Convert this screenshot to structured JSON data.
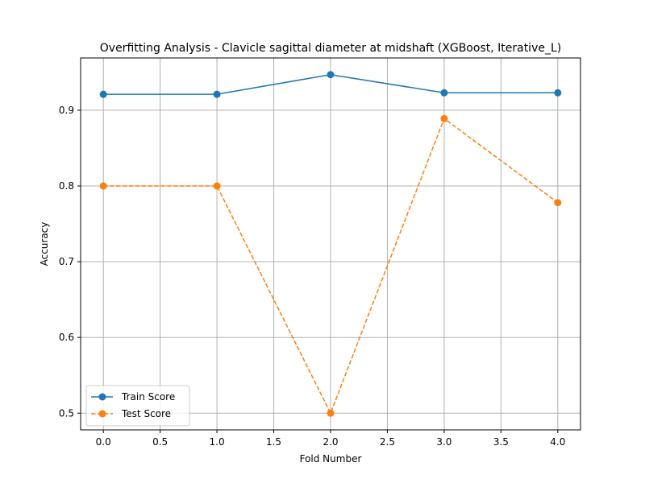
{
  "chart_data": {
    "type": "line",
    "title": "Overfitting Analysis - Clavicle sagittal diameter at midshaft (XGBoost, Iterative_L)",
    "xlabel": "Fold Number",
    "ylabel": "Accuracy",
    "xlim": [
      -0.2,
      4.2
    ],
    "ylim": [
      0.478,
      0.969
    ],
    "xticks": [
      0.0,
      0.5,
      1.0,
      1.5,
      2.0,
      2.5,
      3.0,
      3.5,
      4.0
    ],
    "xtick_labels": [
      "0.0",
      "0.5",
      "1.0",
      "1.5",
      "2.0",
      "2.5",
      "3.0",
      "3.5",
      "4.0"
    ],
    "yticks": [
      0.5,
      0.6,
      0.7,
      0.8,
      0.9
    ],
    "ytick_labels": [
      "0.5",
      "0.6",
      "0.7",
      "0.8",
      "0.9"
    ],
    "grid": true,
    "legend_position": "lower-left",
    "x": [
      0,
      1,
      2,
      3,
      4
    ],
    "series": [
      {
        "name": "Train Score",
        "values": [
          0.921,
          0.921,
          0.947,
          0.923,
          0.923
        ],
        "color": "#1f77b4",
        "linestyle": "solid",
        "marker": "circle"
      },
      {
        "name": "Test Score",
        "values": [
          0.8,
          0.8,
          0.5,
          0.889,
          0.778
        ],
        "color": "#ff7f0e",
        "linestyle": "dashed",
        "marker": "circle"
      }
    ]
  }
}
